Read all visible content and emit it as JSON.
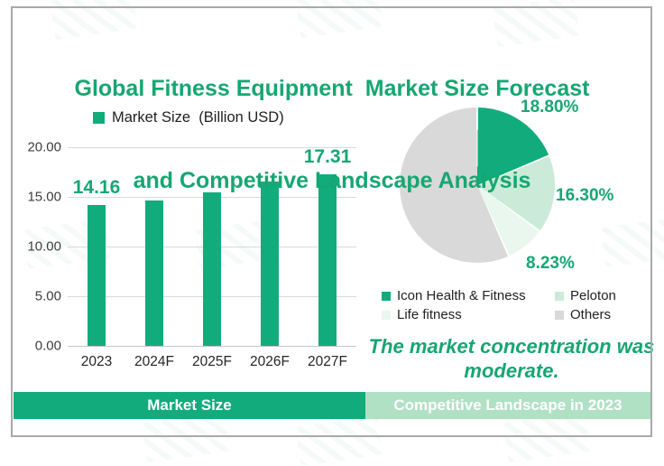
{
  "title": {
    "line1": "Global Fitness Equipment  Market Size Forecast",
    "line2": "and Competitive Landscape Analysis"
  },
  "colors": {
    "accent_text_green": "#17A673",
    "bar_green": "#12AC7C",
    "peloton_light_green": "#CBEBD8",
    "life_fitness_pale_green": "#E9F7EF",
    "others_gray": "#D9D9D9",
    "right_tab_green": "#B0E1C5",
    "frame_border_gray": "#A9A9A9"
  },
  "tabs": {
    "left": "Market Size",
    "right": "Competitive Landscape in 2023"
  },
  "insight": "The market concentration was moderate.",
  "chart_data": [
    {
      "type": "bar",
      "legend": "Market Size  (Billion USD)",
      "categories": [
        "2023",
        "2024F",
        "2025F",
        "2026F",
        "2027F"
      ],
      "values": [
        14.16,
        14.68,
        15.42,
        16.52,
        17.31
      ],
      "value_labels": [
        "14.16",
        null,
        null,
        null,
        "17.31"
      ],
      "ylim": [
        0,
        20
      ],
      "ytick_labels": [
        "20.00",
        "15.00",
        "10.00",
        "5.00",
        "0.00"
      ],
      "grid": true,
      "legend_position": "top",
      "bar_color": "#12AC7C",
      "value_label_color": "#17A673"
    },
    {
      "type": "pie",
      "start_angle_deg": 0,
      "direction": "clockwise",
      "slices": [
        {
          "label": "Icon Health & Fitness",
          "value": 18.8,
          "display": "18.80%",
          "color": "#12AC7C"
        },
        {
          "label": "Peloton",
          "value": 16.3,
          "display": "16.30%",
          "color": "#CBEBD8"
        },
        {
          "label": "Life fitness",
          "value": 8.23,
          "display": "8.23%",
          "color": "#E9F7EF"
        },
        {
          "label": "Others",
          "value": 56.67,
          "display": "",
          "color": "#D9D9D9"
        }
      ],
      "legend_position": "bottom"
    }
  ]
}
